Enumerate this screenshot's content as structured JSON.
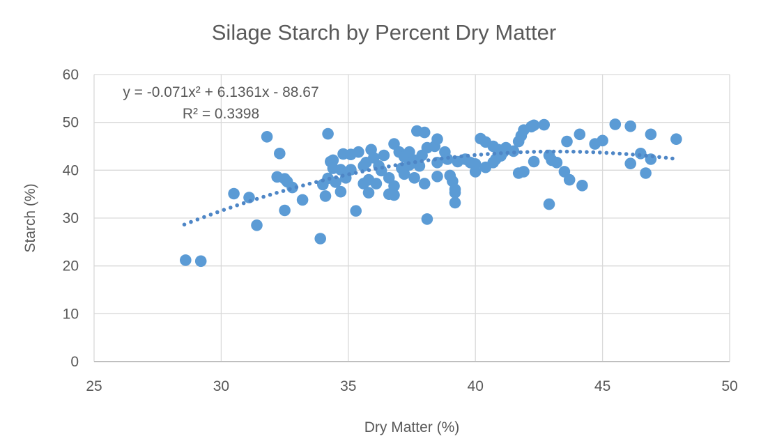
{
  "chart_data": {
    "type": "scatter",
    "title": "Silage Starch by Percent Dry Matter",
    "xlabel": "Dry Matter (%)",
    "ylabel": "Starch (%)",
    "xlim": [
      25,
      50
    ],
    "ylim": [
      0,
      60
    ],
    "xticks": [
      25,
      30,
      35,
      40,
      45,
      50
    ],
    "yticks": [
      0,
      10,
      20,
      30,
      40,
      50,
      60
    ],
    "grid": true,
    "legend": "none",
    "annotations": {
      "equation_line1": "y = -0.071x² + 6.1361x - 88.67",
      "equation_line2": "R² = 0.3398"
    },
    "trendline": {
      "type": "polynomial_order2",
      "a": -0.071,
      "b": 6.1361,
      "c": -88.67,
      "r_squared": 0.3398,
      "x_domain": [
        28.55,
        47.75
      ],
      "style": "dotted"
    },
    "colors": {
      "marker": "#5B9BD5",
      "trendline": "#4E86C6",
      "gridline": "#D9D9D9",
      "axis_line": "#BFBFBF",
      "text": "#595959"
    },
    "points": [
      [
        28.6,
        21.2
      ],
      [
        29.2,
        21.0
      ],
      [
        30.5,
        35.1
      ],
      [
        31.1,
        34.3
      ],
      [
        31.4,
        28.5
      ],
      [
        31.8,
        47.0
      ],
      [
        32.2,
        38.6
      ],
      [
        32.3,
        43.5
      ],
      [
        32.5,
        38.2
      ],
      [
        32.5,
        31.6
      ],
      [
        32.6,
        37.6
      ],
      [
        32.8,
        36.4
      ],
      [
        33.2,
        33.8
      ],
      [
        33.9,
        25.7
      ],
      [
        34.0,
        37.0
      ],
      [
        34.1,
        34.6
      ],
      [
        34.2,
        47.6
      ],
      [
        34.2,
        38.3
      ],
      [
        34.3,
        41.8
      ],
      [
        34.4,
        42.1
      ],
      [
        34.4,
        40.4
      ],
      [
        34.5,
        37.5
      ],
      [
        34.7,
        40.1
      ],
      [
        34.7,
        35.5
      ],
      [
        34.8,
        43.4
      ],
      [
        34.9,
        39.4
      ],
      [
        34.9,
        38.4
      ],
      [
        35.1,
        43.3
      ],
      [
        35.1,
        40.1
      ],
      [
        35.3,
        31.5
      ],
      [
        35.4,
        43.8
      ],
      [
        35.6,
        40.9
      ],
      [
        35.6,
        37.2
      ],
      [
        35.7,
        41.6
      ],
      [
        35.8,
        38.0
      ],
      [
        35.8,
        35.3
      ],
      [
        35.9,
        44.3
      ],
      [
        36.0,
        42.6
      ],
      [
        36.1,
        37.2
      ],
      [
        36.2,
        40.9
      ],
      [
        36.3,
        39.9
      ],
      [
        36.4,
        43.1
      ],
      [
        36.6,
        38.4
      ],
      [
        36.6,
        35.0
      ],
      [
        36.8,
        45.5
      ],
      [
        36.8,
        36.7
      ],
      [
        36.8,
        34.8
      ],
      [
        37.0,
        43.8
      ],
      [
        37.1,
        40.4
      ],
      [
        37.2,
        42.8
      ],
      [
        37.2,
        39.2
      ],
      [
        37.4,
        43.8
      ],
      [
        37.4,
        41.1
      ],
      [
        37.6,
        42.1
      ],
      [
        37.6,
        38.4
      ],
      [
        37.7,
        48.2
      ],
      [
        37.8,
        40.9
      ],
      [
        37.9,
        43.1
      ],
      [
        38.0,
        47.9
      ],
      [
        38.0,
        37.2
      ],
      [
        38.1,
        44.7
      ],
      [
        38.1,
        29.8
      ],
      [
        38.4,
        45.0
      ],
      [
        38.5,
        46.5
      ],
      [
        38.5,
        41.6
      ],
      [
        38.5,
        38.7
      ],
      [
        38.8,
        43.8
      ],
      [
        38.9,
        42.3
      ],
      [
        39.0,
        38.9
      ],
      [
        39.1,
        37.7
      ],
      [
        39.2,
        36.0
      ],
      [
        39.2,
        35.3
      ],
      [
        39.2,
        33.2
      ],
      [
        39.3,
        41.8
      ],
      [
        39.6,
        42.3
      ],
      [
        39.8,
        41.6
      ],
      [
        40.0,
        41.3
      ],
      [
        40.0,
        39.7
      ],
      [
        40.2,
        46.6
      ],
      [
        40.4,
        45.9
      ],
      [
        40.4,
        40.6
      ],
      [
        40.7,
        45.0
      ],
      [
        40.7,
        41.6
      ],
      [
        40.8,
        42.3
      ],
      [
        40.9,
        44.3
      ],
      [
        41.0,
        43.0
      ],
      [
        41.1,
        43.8
      ],
      [
        41.2,
        44.7
      ],
      [
        41.5,
        44.0
      ],
      [
        41.7,
        46.0
      ],
      [
        41.7,
        39.4
      ],
      [
        41.8,
        47.2
      ],
      [
        41.9,
        48.4
      ],
      [
        41.9,
        39.7
      ],
      [
        42.2,
        49.1
      ],
      [
        42.3,
        49.4
      ],
      [
        42.3,
        41.8
      ],
      [
        42.7,
        49.5
      ],
      [
        42.9,
        43.1
      ],
      [
        42.9,
        32.9
      ],
      [
        43.0,
        42.1
      ],
      [
        43.2,
        41.6
      ],
      [
        43.5,
        39.7
      ],
      [
        43.6,
        46.0
      ],
      [
        43.7,
        38.0
      ],
      [
        44.1,
        47.5
      ],
      [
        44.2,
        36.8
      ],
      [
        44.7,
        45.5
      ],
      [
        45.0,
        46.2
      ],
      [
        45.5,
        49.6
      ],
      [
        46.1,
        49.2
      ],
      [
        46.1,
        41.4
      ],
      [
        46.5,
        43.5
      ],
      [
        46.7,
        39.4
      ],
      [
        46.9,
        47.5
      ],
      [
        46.9,
        42.3
      ],
      [
        47.9,
        46.5
      ]
    ]
  }
}
